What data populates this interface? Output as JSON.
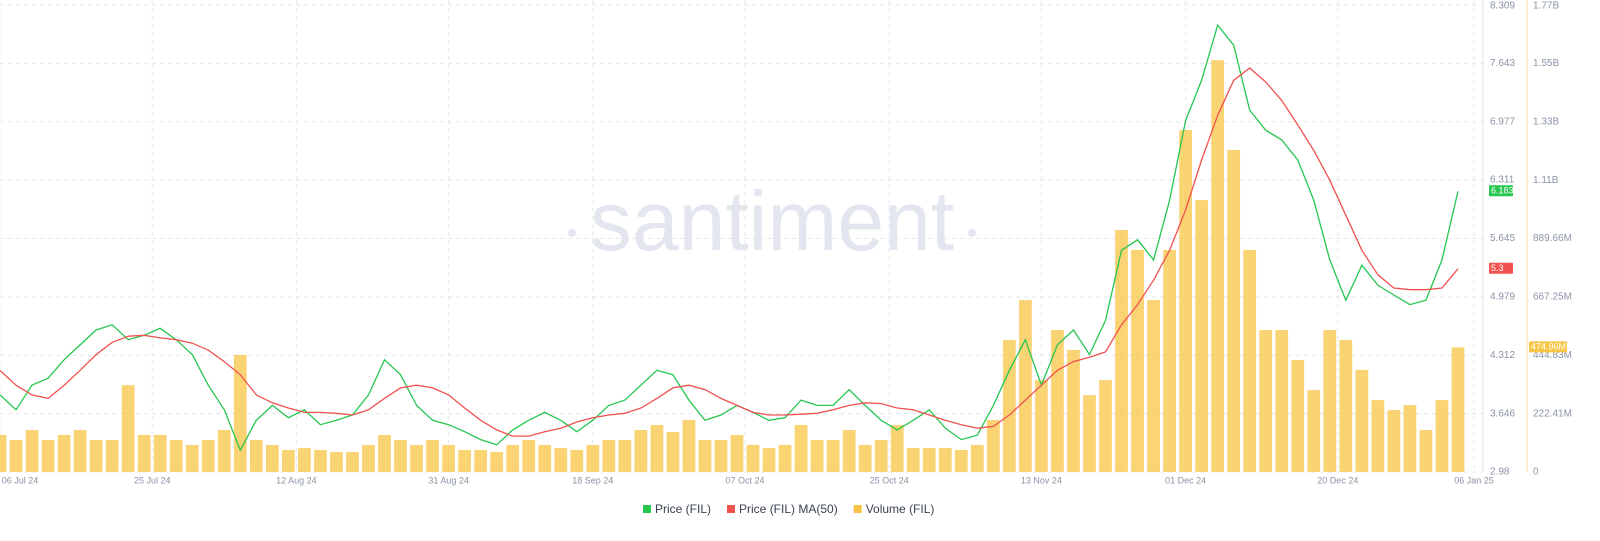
{
  "chart_data": {
    "type": "line",
    "watermark": "santiment",
    "x": [
      "2024-07-06",
      "2024-07-08",
      "2024-07-10",
      "2024-07-12",
      "2024-07-14",
      "2024-07-16",
      "2024-07-18",
      "2024-07-20",
      "2024-07-22",
      "2024-07-24",
      "2024-07-26",
      "2024-07-28",
      "2024-07-30",
      "2024-08-01",
      "2024-08-03",
      "2024-08-05",
      "2024-08-07",
      "2024-08-09",
      "2024-08-11",
      "2024-08-13",
      "2024-08-15",
      "2024-08-17",
      "2024-08-19",
      "2024-08-21",
      "2024-08-23",
      "2024-08-25",
      "2024-08-27",
      "2024-08-29",
      "2024-08-31",
      "2024-09-02",
      "2024-09-04",
      "2024-09-06",
      "2024-09-08",
      "2024-09-10",
      "2024-09-12",
      "2024-09-14",
      "2024-09-16",
      "2024-09-18",
      "2024-09-20",
      "2024-09-22",
      "2024-09-24",
      "2024-09-26",
      "2024-09-28",
      "2024-09-30",
      "2024-10-02",
      "2024-10-04",
      "2024-10-06",
      "2024-10-08",
      "2024-10-10",
      "2024-10-12",
      "2024-10-14",
      "2024-10-16",
      "2024-10-18",
      "2024-10-20",
      "2024-10-22",
      "2024-10-24",
      "2024-10-26",
      "2024-10-28",
      "2024-10-30",
      "2024-11-01",
      "2024-11-03",
      "2024-11-05",
      "2024-11-07",
      "2024-11-09",
      "2024-11-11",
      "2024-11-13",
      "2024-11-15",
      "2024-11-17",
      "2024-11-19",
      "2024-11-21",
      "2024-11-23",
      "2024-11-25",
      "2024-11-27",
      "2024-11-29",
      "2024-12-01",
      "2024-12-03",
      "2024-12-05",
      "2024-12-07",
      "2024-12-09",
      "2024-12-11",
      "2024-12-13",
      "2024-12-15",
      "2024-12-17",
      "2024-12-19",
      "2024-12-21",
      "2024-12-23",
      "2024-12-25",
      "2024-12-27",
      "2024-12-29",
      "2024-12-31",
      "2025-01-02",
      "2025-01-04"
    ],
    "xlim": [
      "2024-07-06",
      "2025-01-05"
    ],
    "xticks": [
      {
        "value": "2024-07-06",
        "label": "06 Jul 24"
      },
      {
        "value": "2024-07-25",
        "label": "25 Jul 24"
      },
      {
        "value": "2024-08-12",
        "label": "12 Aug 24"
      },
      {
        "value": "2024-08-31",
        "label": "31 Aug 24"
      },
      {
        "value": "2024-09-18",
        "label": "18 Sep 24"
      },
      {
        "value": "2024-10-07",
        "label": "07 Oct 24"
      },
      {
        "value": "2024-10-25",
        "label": "25 Oct 24"
      },
      {
        "value": "2024-11-13",
        "label": "13 Nov 24"
      },
      {
        "value": "2024-12-01",
        "label": "01 Dec 24"
      },
      {
        "value": "2024-12-20",
        "label": "20 Dec 24"
      },
      {
        "value": "2025-01-06",
        "label": "06 Jan 25"
      }
    ],
    "ylim": [
      2.98,
      8.309
    ],
    "yticks": [
      2.98,
      3.646,
      4.312,
      4.979,
      5.645,
      6.311,
      6.977,
      7.643,
      8.309
    ],
    "y2lim": [
      0,
      1779320000
    ],
    "y2ticks": [
      0,
      {
        "value": 222410000,
        "label": "222.41M"
      },
      {
        "value": 444830000,
        "label": "444.83M"
      },
      {
        "value": 667250000,
        "label": "667.25M"
      },
      {
        "value": 889660000,
        "label": "889.66M"
      },
      {
        "value": 1112080000,
        "label": "1.11B"
      },
      {
        "value": 1334490000,
        "label": "1.33B"
      },
      {
        "value": 1556910000,
        "label": "1.55B"
      },
      {
        "value": 1779320000,
        "label": "1.77B"
      }
    ],
    "grid": true,
    "legend": "bottom",
    "series": [
      {
        "name": "Price (FIL)",
        "color": "#26c64f",
        "type": "line",
        "axis": "y",
        "value_label": "6.183",
        "values": [
          3.86,
          3.69,
          3.97,
          4.05,
          4.26,
          4.43,
          4.6,
          4.66,
          4.49,
          4.54,
          4.62,
          4.49,
          4.32,
          3.97,
          3.69,
          3.23,
          3.57,
          3.74,
          3.6,
          3.69,
          3.52,
          3.57,
          3.63,
          3.86,
          4.26,
          4.09,
          3.74,
          3.57,
          3.52,
          3.44,
          3.35,
          3.29,
          3.46,
          3.57,
          3.66,
          3.57,
          3.44,
          3.57,
          3.74,
          3.8,
          3.97,
          4.14,
          4.09,
          3.8,
          3.57,
          3.63,
          3.74,
          3.66,
          3.57,
          3.6,
          3.8,
          3.74,
          3.74,
          3.92,
          3.74,
          3.57,
          3.46,
          3.57,
          3.69,
          3.48,
          3.35,
          3.4,
          3.74,
          4.14,
          4.49,
          3.97,
          4.43,
          4.6,
          4.32,
          4.71,
          5.51,
          5.63,
          5.4,
          6.08,
          6.99,
          7.45,
          8.08,
          7.85,
          7.11,
          6.88,
          6.77,
          6.54,
          6.08,
          5.4,
          4.94,
          5.34,
          5.11,
          5.0,
          4.89,
          4.94,
          5.4,
          6.183
        ]
      },
      {
        "name": "Price (FIL) MA(50)",
        "color": "#f0524f",
        "type": "line",
        "axis": "y",
        "value_label": "5.3",
        "values": [
          4.14,
          3.97,
          3.86,
          3.82,
          3.97,
          4.14,
          4.32,
          4.46,
          4.53,
          4.54,
          4.51,
          4.49,
          4.45,
          4.37,
          4.24,
          4.09,
          3.86,
          3.77,
          3.71,
          3.66,
          3.66,
          3.65,
          3.63,
          3.69,
          3.82,
          3.94,
          3.97,
          3.94,
          3.86,
          3.71,
          3.57,
          3.46,
          3.39,
          3.39,
          3.44,
          3.48,
          3.55,
          3.6,
          3.63,
          3.65,
          3.71,
          3.82,
          3.94,
          3.97,
          3.92,
          3.82,
          3.74,
          3.66,
          3.63,
          3.63,
          3.64,
          3.65,
          3.69,
          3.74,
          3.77,
          3.76,
          3.71,
          3.69,
          3.63,
          3.57,
          3.52,
          3.48,
          3.5,
          3.63,
          3.8,
          3.97,
          4.14,
          4.24,
          4.29,
          4.35,
          4.66,
          4.89,
          5.17,
          5.51,
          5.97,
          6.54,
          7.05,
          7.45,
          7.59,
          7.43,
          7.22,
          6.94,
          6.65,
          6.31,
          5.91,
          5.51,
          5.23,
          5.08,
          5.06,
          5.06,
          5.08,
          5.3
        ]
      },
      {
        "name": "Volume (FIL)",
        "color": "#f8c444",
        "type": "bar",
        "axis": "y2",
        "value_label": "474.96M",
        "values": [
          141000000,
          122000000,
          160000000,
          122000000,
          141000000,
          160000000,
          122000000,
          122000000,
          331000000,
          141000000,
          141000000,
          122000000,
          103000000,
          122000000,
          160000000,
          446000000,
          122000000,
          103000000,
          84000000,
          91000000,
          84000000,
          76000000,
          76000000,
          103000000,
          141000000,
          122000000,
          103000000,
          122000000,
          103000000,
          84000000,
          84000000,
          76000000,
          103000000,
          122000000,
          103000000,
          91000000,
          84000000,
          103000000,
          122000000,
          122000000,
          160000000,
          179000000,
          152000000,
          198000000,
          122000000,
          122000000,
          141000000,
          103000000,
          91000000,
          103000000,
          179000000,
          122000000,
          122000000,
          160000000,
          103000000,
          122000000,
          179000000,
          91000000,
          91000000,
          91000000,
          84000000,
          103000000,
          198000000,
          503000000,
          655000000,
          350000000,
          541000000,
          465000000,
          293000000,
          350000000,
          922000000,
          846000000,
          655000000,
          846000000,
          1303000000,
          1036000000,
          1569000000,
          1227000000,
          846000000,
          541000000,
          541000000,
          427000000,
          312000000,
          541000000,
          503000000,
          389000000,
          274000000,
          236000000,
          255000000,
          160000000,
          274000000,
          474960000
        ]
      }
    ]
  }
}
